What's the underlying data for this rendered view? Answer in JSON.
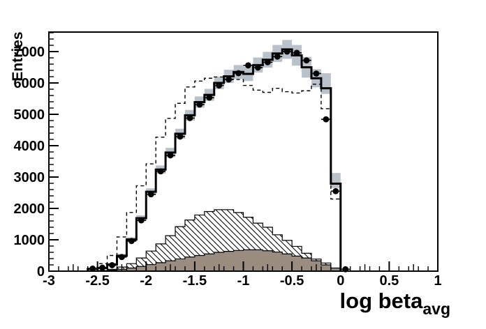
{
  "chart_data": {
    "type": "bar",
    "subtype": "overlaid-step-histograms",
    "title": "",
    "ylabel": "Entries",
    "xlabel": "log beta",
    "xlabel_sub": "avg",
    "xlim": [
      -3,
      1
    ],
    "ylim": [
      0,
      7622
    ],
    "grid": false,
    "legend": "none",
    "bin_width": 0.1,
    "bin_centers": [
      -2.55,
      -2.45,
      -2.35,
      -2.25,
      -2.15,
      -2.05,
      -1.95,
      -1.85,
      -1.75,
      -1.65,
      -1.55,
      -1.45,
      -1.35,
      -1.25,
      -1.15,
      -1.05,
      -0.95,
      -0.85,
      -0.75,
      -0.65,
      -0.55,
      -0.45,
      -0.35,
      -0.25,
      -0.15,
      -0.05
    ],
    "x_tick_values": [
      -3,
      -2.5,
      -2,
      -1.5,
      -1,
      -0.5,
      0,
      0.5,
      1
    ],
    "x_tick_labels": [
      "-3",
      "-2.5",
      "-2",
      "-1.5",
      "-1",
      "-0.5",
      "0",
      "0.5",
      "1"
    ],
    "y_tick_values": [
      0,
      1000,
      2000,
      3000,
      4000,
      5000,
      6000,
      7000
    ],
    "y_tick_labels": [
      "0",
      "1000",
      "2000",
      "3000",
      "4000",
      "5000",
      "6000",
      "7000"
    ],
    "colors": {
      "band": "#b9c2cb",
      "filled_hist": "#9a8c7e",
      "line": "#000000",
      "background": "#ffffff"
    },
    "series": [
      {
        "name": "uncertainty-band",
        "style": "band",
        "lo": [
          30,
          60,
          160,
          430,
          940,
          1600,
          2420,
          3110,
          3630,
          4220,
          4800,
          5210,
          5430,
          5800,
          6000,
          6130,
          6060,
          6330,
          6490,
          6670,
          6770,
          6550,
          6170,
          5860,
          5650,
          2650
        ],
        "hi": [
          110,
          140,
          260,
          550,
          1080,
          1780,
          2640,
          3370,
          3930,
          4540,
          5140,
          5570,
          5810,
          6200,
          6420,
          6570,
          6520,
          6810,
          6990,
          7210,
          7370,
          7210,
          6830,
          6440,
          6310,
          3130
        ]
      },
      {
        "name": "dashed-histogram",
        "style": "dashed-line",
        "values": [
          60,
          240,
          500,
          1090,
          1870,
          2720,
          3420,
          4270,
          4870,
          5350,
          5870,
          6060,
          6150,
          6190,
          6120,
          6110,
          5920,
          5770,
          5700,
          5830,
          5720,
          5680,
          5750,
          5960,
          5180,
          2300
        ]
      },
      {
        "name": "hatched-histogram",
        "style": "hatched",
        "values": [
          0,
          20,
          60,
          130,
          240,
          420,
          640,
          870,
          1130,
          1420,
          1630,
          1790,
          1900,
          1960,
          1960,
          1870,
          1720,
          1530,
          1400,
          1160,
          980,
          790,
          570,
          385,
          260,
          0
        ]
      },
      {
        "name": "filled-histogram",
        "style": "filled",
        "values": [
          0,
          0,
          30,
          60,
          100,
          150,
          210,
          270,
          330,
          390,
          450,
          500,
          550,
          600,
          630,
          660,
          680,
          680,
          650,
          610,
          550,
          480,
          420,
          330,
          200,
          100
        ]
      },
      {
        "name": "solid-histogram",
        "style": "solid-line",
        "values": [
          70,
          100,
          210,
          490,
          1010,
          1690,
          2530,
          3240,
          3780,
          4380,
          4970,
          5390,
          5620,
          6000,
          6210,
          6350,
          6290,
          6570,
          6740,
          6940,
          7070,
          6880,
          6500,
          6150,
          5830,
          2790
        ]
      },
      {
        "name": "data-points",
        "style": "markers-with-errors",
        "x_err_half": 0.05,
        "x": [
          -2.55,
          -2.45,
          -2.35,
          -2.25,
          -2.15,
          -2.05,
          -1.95,
          -1.85,
          -1.75,
          -1.65,
          -1.55,
          -1.45,
          -1.35,
          -1.25,
          -1.15,
          -1.05,
          -0.95,
          -0.85,
          -0.75,
          -0.65,
          -0.55,
          -0.45,
          -0.35,
          -0.25,
          -0.15,
          -0.05,
          0.05
        ],
        "y": [
          80,
          110,
          190,
          450,
          960,
          1620,
          2450,
          3180,
          3690,
          4290,
          4880,
          5310,
          5530,
          5920,
          6110,
          6310,
          6560,
          6490,
          6660,
          6840,
          7000,
          6960,
          6720,
          6300,
          4840,
          2550,
          60
        ]
      }
    ]
  }
}
